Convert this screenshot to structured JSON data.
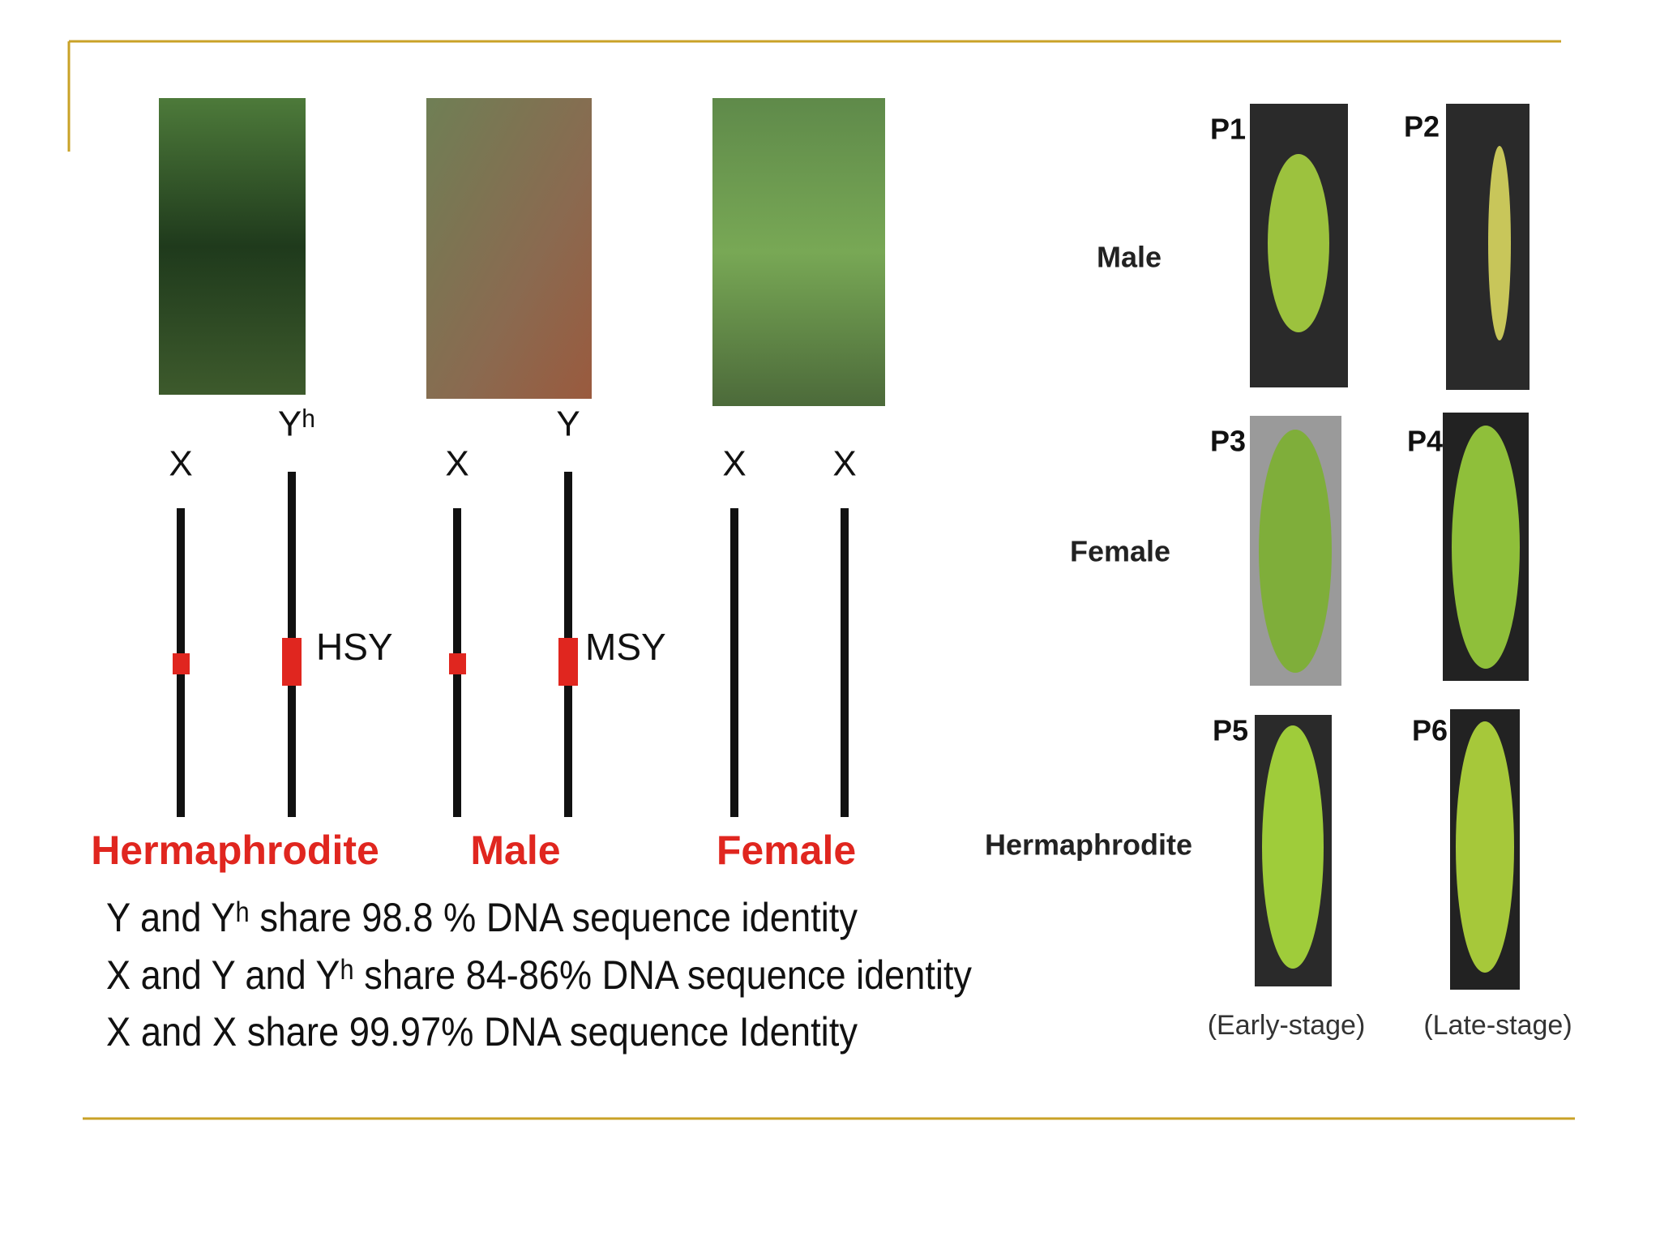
{
  "left_panel": {
    "chromosome_labels": [
      "X",
      "Yʰ",
      "X",
      "Y",
      "X",
      "X"
    ],
    "region_labels": [
      "HSY",
      "MSY"
    ],
    "sex_labels": [
      "Hermaphrodite",
      "Male",
      "Female"
    ],
    "statements": [
      "Y and Yʰ share 98.8 % DNA sequence identity",
      "X and Y and Yʰ share 84-86% DNA sequence identity",
      "X and X share 99.97% DNA sequence Identity"
    ]
  },
  "right_panel": {
    "row_labels": [
      "Male",
      "Female",
      "Hermaphrodite"
    ],
    "panel_labels": [
      "P1",
      "P2",
      "P3",
      "P4",
      "P5",
      "P6"
    ],
    "stage_labels": [
      "(Early-stage)",
      "(Late-stage)"
    ]
  }
}
